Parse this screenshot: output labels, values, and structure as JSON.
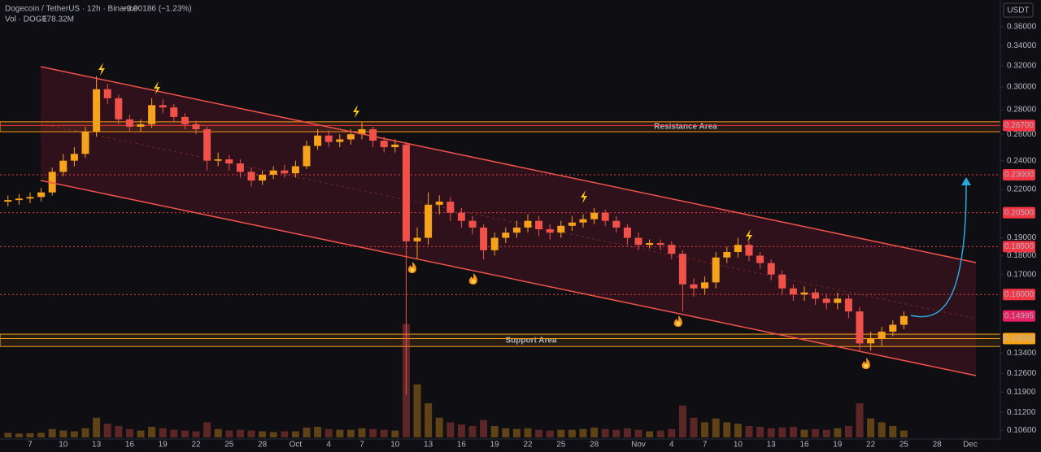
{
  "chart_data": {
    "type": "candlestick",
    "title": "Dogecoin / TetherUS · 12h · Binance",
    "change": "−0.00186 (−1.23%)",
    "volume_label": "Vol · DOGE",
    "volume_value": "178.32M",
    "axis_unit": "USDT",
    "log_scale": true,
    "grid": false,
    "up_color": "#f7a21b",
    "down_color": "#f0524a",
    "categories": [
      null,
      null,
      "7",
      null,
      null,
      "10",
      null,
      null,
      "13",
      null,
      null,
      "16",
      null,
      null,
      "19",
      null,
      null,
      "22",
      null,
      null,
      "25",
      null,
      null,
      "28",
      null,
      null,
      "Oct",
      null,
      null,
      "4",
      null,
      null,
      "7",
      null,
      null,
      "10",
      null,
      null,
      "13",
      null,
      null,
      "16",
      null,
      null,
      "19",
      null,
      null,
      "22",
      null,
      null,
      "25",
      null,
      null,
      "28",
      null,
      null,
      null,
      "Nov",
      null,
      null,
      "4",
      null,
      null,
      "7",
      null,
      null,
      "10",
      null,
      null,
      "13",
      null,
      null,
      "16",
      null,
      null,
      "19",
      null,
      null,
      "22",
      null,
      null,
      "25",
      null,
      null,
      "28",
      null,
      null,
      "Dec"
    ],
    "open": [
      0.212,
      0.213,
      0.214,
      0.215,
      0.218,
      0.232,
      0.24,
      0.245,
      0.262,
      0.298,
      0.29,
      0.272,
      0.266,
      0.268,
      0.284,
      0.282,
      0.274,
      0.268,
      0.264,
      0.24,
      0.241,
      0.238,
      0.232,
      0.226,
      0.23,
      0.233,
      0.231,
      0.236,
      0.251,
      0.259,
      0.254,
      0.256,
      0.26,
      0.264,
      0.255,
      0.25,
      0.252,
      0.188,
      0.19,
      0.21,
      0.212,
      0.205,
      0.2,
      0.196,
      0.183,
      0.19,
      0.193,
      0.196,
      0.2,
      0.195,
      0.193,
      0.197,
      0.199,
      0.201,
      0.205,
      0.2,
      0.196,
      0.19,
      0.186,
      0.187,
      0.186,
      0.181,
      0.165,
      0.163,
      0.166,
      0.179,
      0.182,
      0.186,
      0.18,
      0.176,
      0.17,
      0.163,
      0.16,
      0.161,
      0.158,
      0.156,
      0.158,
      0.152,
      0.138,
      0.14,
      0.143,
      0.146,
      null,
      null,
      null,
      null,
      null,
      null
    ],
    "high": [
      0.216,
      0.217,
      0.218,
      0.221,
      0.235,
      0.245,
      0.25,
      0.266,
      0.31,
      0.303,
      0.293,
      0.276,
      0.272,
      0.29,
      0.289,
      0.285,
      0.277,
      0.271,
      0.266,
      0.246,
      0.244,
      0.241,
      0.235,
      0.233,
      0.236,
      0.237,
      0.24,
      0.255,
      0.264,
      0.263,
      0.26,
      0.264,
      0.27,
      0.266,
      0.258,
      0.256,
      0.254,
      0.196,
      0.218,
      0.216,
      0.215,
      0.208,
      0.203,
      0.198,
      0.193,
      0.196,
      0.2,
      0.204,
      0.203,
      0.198,
      0.2,
      0.203,
      0.204,
      0.208,
      0.207,
      0.203,
      0.198,
      0.193,
      0.189,
      0.189,
      0.188,
      0.183,
      0.168,
      0.169,
      0.182,
      0.185,
      0.19,
      0.188,
      0.182,
      0.178,
      0.172,
      0.165,
      0.164,
      0.163,
      0.16,
      0.161,
      0.16,
      0.154,
      0.143,
      0.145,
      0.148,
      0.152,
      null,
      null,
      null,
      null,
      null,
      null
    ],
    "low": [
      0.209,
      0.21,
      0.211,
      0.212,
      0.216,
      0.229,
      0.236,
      0.242,
      0.258,
      0.285,
      0.268,
      0.262,
      0.262,
      0.265,
      0.277,
      0.27,
      0.264,
      0.26,
      0.233,
      0.236,
      0.233,
      0.228,
      0.222,
      0.223,
      0.227,
      0.228,
      0.228,
      0.234,
      0.248,
      0.25,
      0.25,
      0.252,
      0.256,
      0.25,
      0.246,
      0.246,
      0.118,
      0.178,
      0.186,
      0.204,
      0.2,
      0.196,
      0.192,
      0.178,
      0.18,
      0.187,
      0.19,
      0.193,
      0.191,
      0.189,
      0.19,
      0.194,
      0.196,
      0.198,
      0.197,
      0.193,
      0.186,
      0.183,
      0.184,
      0.183,
      0.178,
      0.152,
      0.159,
      0.16,
      0.163,
      0.176,
      0.179,
      0.177,
      0.173,
      0.167,
      0.16,
      0.157,
      0.157,
      0.155,
      0.153,
      0.153,
      0.149,
      0.135,
      0.135,
      0.137,
      0.141,
      0.144,
      null,
      null,
      null,
      null,
      null,
      null
    ],
    "close": [
      0.213,
      0.214,
      0.215,
      0.218,
      0.232,
      0.24,
      0.245,
      0.262,
      0.298,
      0.29,
      0.272,
      0.266,
      0.268,
      0.284,
      0.282,
      0.274,
      0.268,
      0.264,
      0.24,
      0.241,
      0.238,
      0.232,
      0.226,
      0.23,
      0.233,
      0.231,
      0.236,
      0.251,
      0.259,
      0.254,
      0.256,
      0.26,
      0.264,
      0.255,
      0.25,
      0.252,
      0.188,
      0.19,
      0.21,
      0.212,
      0.205,
      0.2,
      0.196,
      0.183,
      0.19,
      0.193,
      0.196,
      0.2,
      0.195,
      0.193,
      0.197,
      0.199,
      0.201,
      0.205,
      0.2,
      0.196,
      0.19,
      0.186,
      0.187,
      0.186,
      0.181,
      0.165,
      0.163,
      0.166,
      0.179,
      0.182,
      0.186,
      0.18,
      0.176,
      0.17,
      0.163,
      0.16,
      0.161,
      0.158,
      0.156,
      0.158,
      0.152,
      0.138,
      0.14,
      0.143,
      0.146,
      0.1499,
      null,
      null,
      null,
      null,
      null,
      null
    ],
    "volume": [
      60,
      50,
      55,
      60,
      110,
      90,
      80,
      120,
      260,
      180,
      150,
      110,
      90,
      140,
      120,
      100,
      90,
      80,
      200,
      110,
      90,
      100,
      90,
      80,
      70,
      80,
      80,
      130,
      140,
      110,
      100,
      100,
      120,
      110,
      100,
      90,
      1500,
      700,
      450,
      260,
      200,
      170,
      150,
      230,
      150,
      120,
      110,
      120,
      100,
      90,
      100,
      100,
      110,
      130,
      110,
      100,
      120,
      100,
      80,
      90,
      110,
      420,
      260,
      200,
      250,
      200,
      180,
      150,
      140,
      120,
      130,
      140,
      100,
      110,
      100,
      120,
      150,
      450,
      250,
      200,
      150,
      90,
      null,
      null,
      null,
      null,
      null,
      null
    ],
    "ylim": [
      0.1038,
      0.3905
    ],
    "yticks": [
      {
        "value": 0.36,
        "label": "0.36000"
      },
      {
        "value": 0.34,
        "label": "0.34000"
      },
      {
        "value": 0.32,
        "label": "0.32000"
      },
      {
        "value": 0.3,
        "label": "0.30000"
      },
      {
        "value": 0.28,
        "label": "0.28000"
      },
      {
        "value": 0.26,
        "label": "0.26000"
      },
      {
        "value": 0.24,
        "label": "0.24000"
      },
      {
        "value": 0.22,
        "label": "0.22000"
      },
      {
        "value": 0.19,
        "label": "0.19000"
      },
      {
        "value": 0.18,
        "label": "0.18000"
      },
      {
        "value": 0.17,
        "label": "0.17000"
      },
      {
        "value": 0.134,
        "label": "0.13400"
      },
      {
        "value": 0.126,
        "label": "0.12600"
      },
      {
        "value": 0.119,
        "label": "0.11900"
      },
      {
        "value": 0.112,
        "label": "0.11200"
      },
      {
        "value": 0.106,
        "label": "0.10600"
      }
    ],
    "levels": [
      {
        "value": 0.267,
        "label": "0.26700",
        "color": "#f23645",
        "style": "solid"
      },
      {
        "value": 0.23,
        "label": "0.23000",
        "color": "#f23645",
        "style": "dotted"
      },
      {
        "value": 0.205,
        "label": "0.20500",
        "color": "#f23645",
        "style": "dotted"
      },
      {
        "value": 0.185,
        "label": "0.18500",
        "color": "#f23645",
        "style": "dotted"
      },
      {
        "value": 0.16,
        "label": "0.16000",
        "color": "#f23645",
        "style": "dotted"
      },
      {
        "value": 0.14995,
        "label": "0.14995",
        "color": "#e91e63",
        "style": "none"
      },
      {
        "value": 0.14,
        "label": "0.14000",
        "color": "#f7a21b",
        "style": "solid"
      }
    ],
    "zones": [
      {
        "label": "Resistance Area",
        "low": 0.262,
        "high": 0.27,
        "color": "#f7931a"
      },
      {
        "label": "Support Area",
        "low": 0.1367,
        "high": 0.1419,
        "color": "#f7a21b"
      }
    ]
  }
}
